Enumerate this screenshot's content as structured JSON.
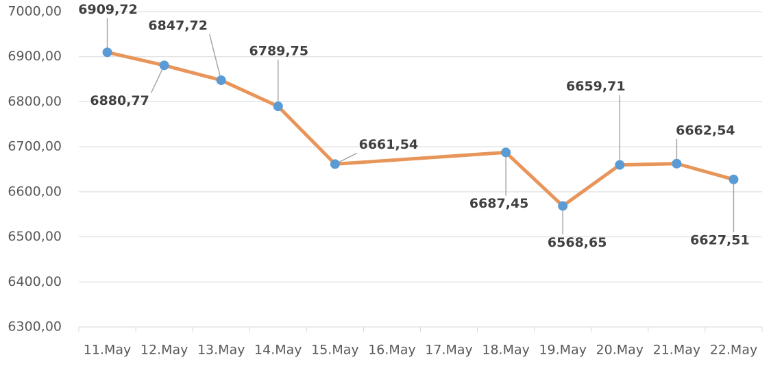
{
  "chart_data": {
    "type": "line",
    "categories": [
      "11.May",
      "12.May",
      "13.May",
      "14.May",
      "15.May",
      "16.May",
      "17.May",
      "18.May",
      "19.May",
      "20.May",
      "21.May",
      "22.May"
    ],
    "series": [
      {
        "color": "#e8955a",
        "marker_color": "#5b9bd5",
        "values": [
          6909.72,
          6880.77,
          6847.72,
          6789.75,
          6661.54,
          null,
          null,
          6687.45,
          6568.65,
          6659.71,
          6662.54,
          6627.51
        ],
        "value_labels": [
          "6909,72",
          "6880,77",
          "6847,72",
          "6789,75",
          "6661,54",
          null,
          null,
          "6687,45",
          "6568,65",
          "6659,71",
          "6662,54",
          "6627,51"
        ]
      }
    ],
    "connect_gaps": true,
    "ylim": [
      6300,
      7000
    ],
    "yticks": [
      {
        "value": 6300,
        "label": "6300,00"
      },
      {
        "value": 6400,
        "label": "6400,00"
      },
      {
        "value": 6500,
        "label": "6500,00"
      },
      {
        "value": 6600,
        "label": "6600,00"
      },
      {
        "value": 6700,
        "label": "6700,00"
      },
      {
        "value": 6800,
        "label": "6800,00"
      },
      {
        "value": 6900,
        "label": "6900,00"
      },
      {
        "value": 7000,
        "label": "7000,00"
      }
    ],
    "grid": true
  }
}
